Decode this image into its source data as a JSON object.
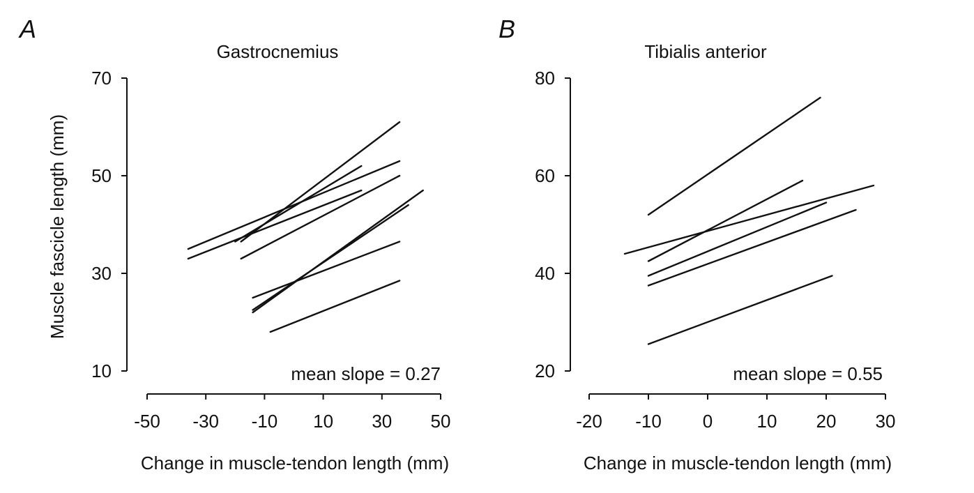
{
  "chart_data": [
    {
      "panel_letter": "A",
      "type": "line",
      "title": "Gastrocnemius",
      "xlabel": "Change in muscle-tendon length (mm)",
      "ylabel": "Muscle fascicle length (mm)",
      "xlim": [
        -50,
        50
      ],
      "ylim": [
        10,
        70
      ],
      "xticks": [
        "-50",
        "-30",
        "-10",
        "10",
        "30",
        "50"
      ],
      "yticks": [
        "10",
        "30",
        "50",
        "70"
      ],
      "annotation": "mean slope = 0.27",
      "series": [
        {
          "x": [
            -36,
            36
          ],
          "y": [
            35,
            53
          ]
        },
        {
          "x": [
            -36,
            23
          ],
          "y": [
            33,
            47
          ]
        },
        {
          "x": [
            -20,
            23
          ],
          "y": [
            36.5,
            52
          ]
        },
        {
          "x": [
            -18,
            36
          ],
          "y": [
            36.5,
            61
          ]
        },
        {
          "x": [
            -18,
            36
          ],
          "y": [
            33,
            50
          ]
        },
        {
          "x": [
            -14,
            44
          ],
          "y": [
            22,
            47
          ]
        },
        {
          "x": [
            -14,
            39
          ],
          "y": [
            22.5,
            44
          ]
        },
        {
          "x": [
            -14,
            36
          ],
          "y": [
            25,
            36.5
          ]
        },
        {
          "x": [
            -8,
            36
          ],
          "y": [
            18,
            28.5
          ]
        }
      ]
    },
    {
      "panel_letter": "B",
      "type": "line",
      "title": "Tibialis anterior",
      "xlabel": "Change in muscle-tendon length (mm)",
      "ylabel": "",
      "xlim": [
        -20,
        30
      ],
      "ylim": [
        20,
        80
      ],
      "xticks": [
        "-20",
        "-10",
        "0",
        "10",
        "20",
        "30"
      ],
      "yticks": [
        "20",
        "40",
        "60",
        "80"
      ],
      "annotation": "mean slope = 0.55",
      "series": [
        {
          "x": [
            -10,
            19
          ],
          "y": [
            52,
            76
          ]
        },
        {
          "x": [
            -10,
            16
          ],
          "y": [
            42.5,
            59
          ]
        },
        {
          "x": [
            -14,
            28
          ],
          "y": [
            44,
            58
          ]
        },
        {
          "x": [
            -10,
            20
          ],
          "y": [
            39.5,
            54.5
          ]
        },
        {
          "x": [
            -10,
            25
          ],
          "y": [
            37.5,
            53
          ]
        },
        {
          "x": [
            -10,
            21
          ],
          "y": [
            25.5,
            39.5
          ]
        }
      ]
    }
  ]
}
